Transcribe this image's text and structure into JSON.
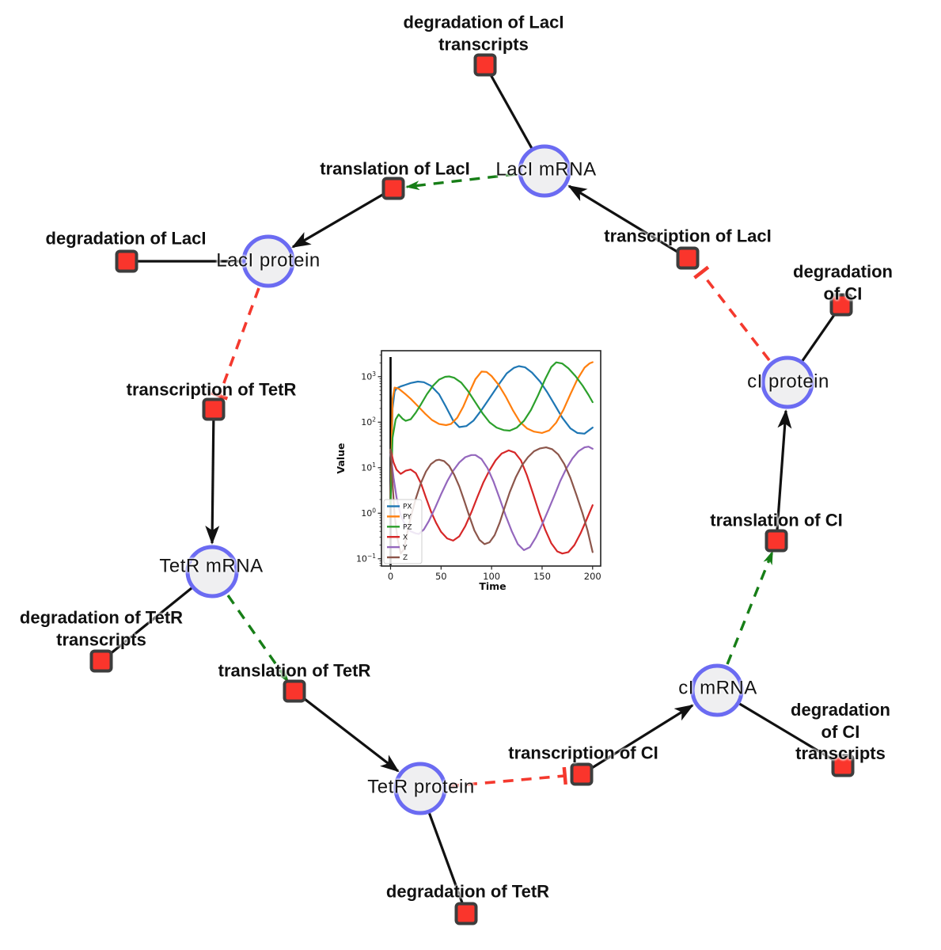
{
  "colors": {
    "species_fill": "#efeff1",
    "species_border": "#6b6bf2",
    "reaction_fill": "#fa352c",
    "reaction_border": "#3d3d3d",
    "production_edge": "#111111",
    "modifier_edge": "#177e17",
    "inhibition_edge": "#f4392e"
  },
  "network": {
    "species": [
      {
        "id": "laci-mrna",
        "label": "LacI mRNA"
      },
      {
        "id": "laci-protein",
        "label": "LacI protein"
      },
      {
        "id": "ci-protein",
        "label": "cI protein"
      },
      {
        "id": "tetr-mrna",
        "label": "TetR mRNA"
      },
      {
        "id": "ci-mrna",
        "label": "cI mRNA"
      },
      {
        "id": "tetr-protein",
        "label": "TetR protein"
      }
    ],
    "reactions": [
      {
        "id": "deg-laci-transcripts",
        "label": "degradation of LacI\ntranscripts"
      },
      {
        "id": "translation-laci",
        "label": "translation of LacI"
      },
      {
        "id": "deg-laci",
        "label": "degradation of LacI"
      },
      {
        "id": "transcription-laci",
        "label": "transcription of LacI"
      },
      {
        "id": "deg-ci",
        "label": "degradation of CI"
      },
      {
        "id": "transcription-tetr",
        "label": "transcription of TetR"
      },
      {
        "id": "translation-ci",
        "label": "translation of CI"
      },
      {
        "id": "deg-tetr-transcripts",
        "label": "degradation of TetR\ntranscripts"
      },
      {
        "id": "translation-tetr",
        "label": "translation of TetR"
      },
      {
        "id": "deg-ci-transcripts",
        "label": "degradation of CI\ntranscripts"
      },
      {
        "id": "transcription-ci",
        "label": "transcription of CI"
      },
      {
        "id": "deg-tetr",
        "label": "degradation of TetR"
      }
    ],
    "edges": [
      {
        "source": "LacI mRNA",
        "target": "degradation of LacI transcripts",
        "type": "consumption"
      },
      {
        "source": "transcription of LacI",
        "target": "LacI mRNA",
        "type": "production"
      },
      {
        "source": "LacI mRNA",
        "target": "translation of LacI",
        "type": "modifier"
      },
      {
        "source": "translation of LacI",
        "target": "LacI protein",
        "type": "production"
      },
      {
        "source": "LacI protein",
        "target": "degradation of LacI",
        "type": "consumption"
      },
      {
        "source": "LacI protein",
        "target": "transcription of TetR",
        "type": "inhibition"
      },
      {
        "source": "transcription of TetR",
        "target": "TetR mRNA",
        "type": "production"
      },
      {
        "source": "TetR mRNA",
        "target": "degradation of TetR transcripts",
        "type": "consumption"
      },
      {
        "source": "TetR mRNA",
        "target": "translation of TetR",
        "type": "modifier"
      },
      {
        "source": "translation of TetR",
        "target": "TetR protein",
        "type": "production"
      },
      {
        "source": "TetR protein",
        "target": "degradation of TetR",
        "type": "consumption"
      },
      {
        "source": "TetR protein",
        "target": "transcription of CI",
        "type": "inhibition"
      },
      {
        "source": "transcription of CI",
        "target": "cI mRNA",
        "type": "production"
      },
      {
        "source": "cI mRNA",
        "target": "degradation of CI transcripts",
        "type": "consumption"
      },
      {
        "source": "cI mRNA",
        "target": "translation of CI",
        "type": "modifier"
      },
      {
        "source": "translation of CI",
        "target": "cI protein",
        "type": "production"
      },
      {
        "source": "cI protein",
        "target": "degradation of CI",
        "type": "consumption"
      },
      {
        "source": "cI protein",
        "target": "transcription of LacI",
        "type": "inhibition"
      }
    ]
  },
  "chart_data": {
    "type": "line",
    "title": "",
    "xlabel": "Time",
    "ylabel": "Value",
    "y_scale": "log",
    "grid": false,
    "legend_position": "lower left",
    "xlim": [
      -9,
      208
    ],
    "ylim_log": [
      -1.16,
      3.57
    ],
    "x_ticks": [
      0,
      50,
      100,
      150,
      200
    ],
    "y_ticks": [
      0.1,
      1,
      10,
      100,
      1000
    ],
    "init_line_x": 0,
    "series": [
      {
        "name": "PX",
        "color": "#1f77b4",
        "points": [
          [
            0,
            1.5
          ],
          [
            2,
            200
          ],
          [
            4,
            470
          ],
          [
            6,
            555
          ],
          [
            10,
            610
          ],
          [
            15,
            665
          ],
          [
            20,
            725
          ],
          [
            27,
            780
          ],
          [
            33,
            755
          ],
          [
            40,
            630
          ],
          [
            48,
            410
          ],
          [
            55,
            215
          ],
          [
            62,
            108
          ],
          [
            68,
            78
          ],
          [
            75,
            82
          ],
          [
            82,
            108
          ],
          [
            90,
            185
          ],
          [
            100,
            390
          ],
          [
            108,
            720
          ],
          [
            115,
            1180
          ],
          [
            122,
            1560
          ],
          [
            127,
            1700
          ],
          [
            133,
            1610
          ],
          [
            140,
            1230
          ],
          [
            148,
            780
          ],
          [
            155,
            460
          ],
          [
            163,
            230
          ],
          [
            170,
            125
          ],
          [
            178,
            73
          ],
          [
            185,
            58
          ],
          [
            192,
            56
          ],
          [
            200,
            76
          ]
        ]
      },
      {
        "name": "PY",
        "color": "#ff7f0e",
        "points": [
          [
            0,
            1.5
          ],
          [
            2,
            320
          ],
          [
            4,
            575
          ],
          [
            8,
            545
          ],
          [
            14,
            425
          ],
          [
            20,
            325
          ],
          [
            27,
            225
          ],
          [
            34,
            155
          ],
          [
            41,
            112
          ],
          [
            48,
            91
          ],
          [
            55,
            86
          ],
          [
            60,
            92
          ],
          [
            66,
            125
          ],
          [
            72,
            220
          ],
          [
            78,
            450
          ],
          [
            84,
            880
          ],
          [
            90,
            1290
          ],
          [
            95,
            1270
          ],
          [
            100,
            1030
          ],
          [
            107,
            660
          ],
          [
            114,
            365
          ],
          [
            121,
            185
          ],
          [
            128,
            102
          ],
          [
            135,
            73
          ],
          [
            142,
            62
          ],
          [
            150,
            58
          ],
          [
            157,
            66
          ],
          [
            164,
            98
          ],
          [
            171,
            185
          ],
          [
            178,
            410
          ],
          [
            185,
            880
          ],
          [
            192,
            1580
          ],
          [
            197,
            1960
          ],
          [
            200,
            2080
          ]
        ]
      },
      {
        "name": "PZ",
        "color": "#2ca02c",
        "points": [
          [
            0,
            1.5
          ],
          [
            2,
            45
          ],
          [
            5,
            115
          ],
          [
            8,
            148
          ],
          [
            12,
            118
          ],
          [
            15,
            107
          ],
          [
            20,
            116
          ],
          [
            25,
            162
          ],
          [
            30,
            245
          ],
          [
            36,
            410
          ],
          [
            42,
            630
          ],
          [
            48,
            860
          ],
          [
            54,
            990
          ],
          [
            58,
            1010
          ],
          [
            63,
            945
          ],
          [
            70,
            740
          ],
          [
            77,
            470
          ],
          [
            84,
            272
          ],
          [
            91,
            158
          ],
          [
            98,
            99
          ],
          [
            105,
            76
          ],
          [
            112,
            67
          ],
          [
            118,
            65
          ],
          [
            125,
            76
          ],
          [
            132,
            107
          ],
          [
            139,
            185
          ],
          [
            146,
            390
          ],
          [
            153,
            880
          ],
          [
            159,
            1620
          ],
          [
            164,
            2060
          ],
          [
            170,
            1940
          ],
          [
            176,
            1530
          ],
          [
            183,
            1030
          ],
          [
            190,
            640
          ],
          [
            196,
            395
          ],
          [
            200,
            275
          ]
        ]
      },
      {
        "name": "X",
        "color": "#d62728",
        "points": [
          [
            0,
            25
          ],
          [
            3,
            13
          ],
          [
            6,
            9
          ],
          [
            10,
            7.3
          ],
          [
            15,
            8.6
          ],
          [
            20,
            9.1
          ],
          [
            25,
            7.6
          ],
          [
            30,
            4.6
          ],
          [
            35,
            2.2
          ],
          [
            40,
            1.1
          ],
          [
            45,
            0.62
          ],
          [
            50,
            0.39
          ],
          [
            56,
            0.28
          ],
          [
            62,
            0.25
          ],
          [
            68,
            0.31
          ],
          [
            74,
            0.52
          ],
          [
            80,
            1.05
          ],
          [
            86,
            2.3
          ],
          [
            92,
            4.8
          ],
          [
            98,
            8.8
          ],
          [
            104,
            14.5
          ],
          [
            110,
            20.5
          ],
          [
            117,
            24
          ],
          [
            123,
            21.5
          ],
          [
            129,
            14.5
          ],
          [
            135,
            6.8
          ],
          [
            141,
            2.7
          ],
          [
            147,
            1.05
          ],
          [
            153,
            0.44
          ],
          [
            159,
            0.22
          ],
          [
            165,
            0.145
          ],
          [
            170,
            0.13
          ],
          [
            176,
            0.14
          ],
          [
            182,
            0.2
          ],
          [
            188,
            0.36
          ],
          [
            194,
            0.72
          ],
          [
            200,
            1.5
          ]
        ]
      },
      {
        "name": "Y",
        "color": "#9467bd",
        "points": [
          [
            0,
            20
          ],
          [
            3,
            6
          ],
          [
            6,
            2.2
          ],
          [
            10,
            0.9
          ],
          [
            15,
            0.52
          ],
          [
            20,
            0.4
          ],
          [
            25,
            0.36
          ],
          [
            28,
            0.35
          ],
          [
            33,
            0.44
          ],
          [
            38,
            0.68
          ],
          [
            44,
            1.3
          ],
          [
            50,
            2.6
          ],
          [
            56,
            5
          ],
          [
            62,
            8.6
          ],
          [
            68,
            13
          ],
          [
            74,
            17
          ],
          [
            80,
            19
          ],
          [
            84,
            19
          ],
          [
            90,
            15.5
          ],
          [
            96,
            9.8
          ],
          [
            102,
            4.9
          ],
          [
            108,
            2.1
          ],
          [
            114,
            0.88
          ],
          [
            120,
            0.4
          ],
          [
            126,
            0.21
          ],
          [
            132,
            0.155
          ],
          [
            138,
            0.18
          ],
          [
            144,
            0.3
          ],
          [
            150,
            0.57
          ],
          [
            156,
            1.15
          ],
          [
            162,
            2.4
          ],
          [
            168,
            5.1
          ],
          [
            174,
            9.6
          ],
          [
            180,
            16
          ],
          [
            186,
            23
          ],
          [
            192,
            28
          ],
          [
            196,
            29
          ],
          [
            200,
            26
          ]
        ]
      },
      {
        "name": "Z",
        "color": "#8c564b",
        "points": [
          [
            0,
            25
          ],
          [
            2,
            4.5
          ],
          [
            4,
            0.9
          ],
          [
            7,
            0.27
          ],
          [
            10,
            0.13
          ],
          [
            13,
            0.16
          ],
          [
            16,
            0.32
          ],
          [
            20,
            0.82
          ],
          [
            25,
            2.1
          ],
          [
            30,
            4.6
          ],
          [
            35,
            8.2
          ],
          [
            40,
            12
          ],
          [
            45,
            14.5
          ],
          [
            48,
            15
          ],
          [
            53,
            14
          ],
          [
            58,
            11
          ],
          [
            63,
            7
          ],
          [
            68,
            3.9
          ],
          [
            73,
            1.85
          ],
          [
            78,
            0.86
          ],
          [
            83,
            0.42
          ],
          [
            88,
            0.26
          ],
          [
            93,
            0.21
          ],
          [
            98,
            0.23
          ],
          [
            103,
            0.33
          ],
          [
            108,
            0.62
          ],
          [
            113,
            1.35
          ],
          [
            118,
            2.9
          ],
          [
            124,
            6.2
          ],
          [
            130,
            11.2
          ],
          [
            136,
            17
          ],
          [
            142,
            23
          ],
          [
            148,
            26.5
          ],
          [
            154,
            28
          ],
          [
            160,
            25.5
          ],
          [
            166,
            19.5
          ],
          [
            172,
            12
          ],
          [
            178,
            6
          ],
          [
            184,
            2.5
          ],
          [
            190,
            1
          ],
          [
            195,
            0.42
          ],
          [
            200,
            0.14
          ]
        ]
      }
    ]
  }
}
